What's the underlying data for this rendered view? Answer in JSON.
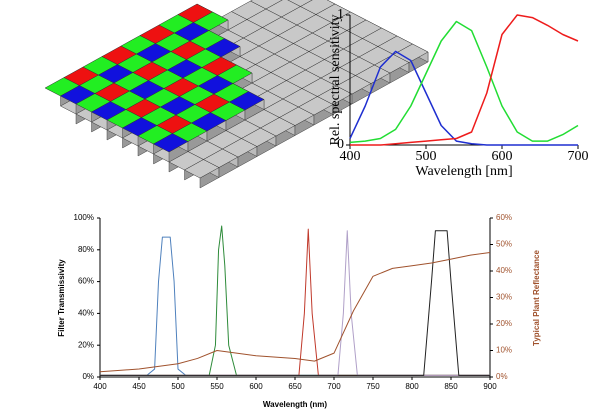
{
  "chart_data": [
    {
      "type": "line",
      "xlabel": "Wavelength [nm]",
      "ylabel": "Rel. spectral sensitivity",
      "x": [
        400,
        420,
        440,
        460,
        480,
        500,
        520,
        540,
        560,
        580,
        600,
        620,
        640,
        660,
        680,
        700
      ],
      "xlim": [
        400,
        700
      ],
      "xticks": [
        400,
        500,
        600,
        700
      ],
      "ylim": [
        0,
        1
      ],
      "yticks": [
        0,
        1
      ],
      "series": [
        {
          "color": "#1f2fd0",
          "values": [
            0.05,
            0.3,
            0.6,
            0.72,
            0.65,
            0.4,
            0.15,
            0.03,
            0.01,
            0,
            0,
            0,
            0,
            0,
            0,
            0
          ]
        },
        {
          "color": "#22dd33",
          "values": [
            0.02,
            0.03,
            0.05,
            0.12,
            0.3,
            0.55,
            0.8,
            0.95,
            0.88,
            0.6,
            0.3,
            0.1,
            0.03,
            0.03,
            0.08,
            0.15
          ]
        },
        {
          "color": "#ee1c1c",
          "values": [
            0,
            0,
            0,
            0.01,
            0.02,
            0.03,
            0.04,
            0.05,
            0.1,
            0.4,
            0.85,
            1.0,
            0.98,
            0.92,
            0.85,
            0.8
          ]
        }
      ]
    },
    {
      "type": "line",
      "xlabel": "Wavelength (nm)",
      "ylabel": "Filter Transmissivity",
      "y2label": "Typical Plant Reflectance",
      "xlim": [
        400,
        900
      ],
      "xticks": [
        400,
        450,
        500,
        550,
        600,
        650,
        700,
        750,
        800,
        850,
        900
      ],
      "ylim": [
        0,
        100
      ],
      "yticks": [
        {
          "value": 0,
          "label": "0%"
        },
        {
          "value": 20,
          "label": "20%"
        },
        {
          "value": 40,
          "label": "40%"
        },
        {
          "value": 60,
          "label": "60%"
        },
        {
          "value": 80,
          "label": "80%"
        },
        {
          "value": 100,
          "label": "100%"
        }
      ],
      "y2lim": [
        0,
        60
      ],
      "y2ticks": [
        {
          "value": 0,
          "label": "0%"
        },
        {
          "value": 10,
          "label": "10%"
        },
        {
          "value": 20,
          "label": "20%"
        },
        {
          "value": 30,
          "label": "30%"
        },
        {
          "value": 40,
          "label": "40%"
        },
        {
          "value": 50,
          "label": "50%"
        },
        {
          "value": 60,
          "label": "60%"
        }
      ],
      "series": [
        {
          "color": "#4f81bd",
          "x": [
            400,
            460,
            470,
            475,
            480,
            490,
            495,
            500,
            510,
            900
          ],
          "values": [
            1,
            1,
            5,
            60,
            88,
            88,
            60,
            5,
            1,
            1
          ]
        },
        {
          "color": "#2e8b3a",
          "x": [
            400,
            540,
            548,
            552,
            556,
            560,
            565,
            575,
            900
          ],
          "values": [
            1,
            1,
            20,
            80,
            95,
            70,
            20,
            1,
            1
          ]
        },
        {
          "color": "#c0392b",
          "x": [
            400,
            655,
            662,
            667,
            672,
            680,
            900
          ],
          "values": [
            1,
            1,
            40,
            93,
            40,
            1,
            1
          ]
        },
        {
          "color": "#b0a0c8",
          "x": [
            400,
            705,
            712,
            717,
            722,
            730,
            900
          ],
          "values": [
            1,
            1,
            40,
            92,
            40,
            1,
            1
          ]
        },
        {
          "color": "#222222",
          "x": [
            400,
            815,
            825,
            830,
            845,
            850,
            860,
            900
          ],
          "values": [
            1,
            1,
            60,
            92,
            92,
            60,
            1,
            1
          ]
        },
        {
          "color": "#a0522d",
          "axis": "y2",
          "x": [
            400,
            425,
            450,
            475,
            500,
            525,
            550,
            575,
            600,
            625,
            650,
            675,
            700,
            725,
            750,
            775,
            800,
            825,
            850,
            875,
            900
          ],
          "values": [
            2,
            2.5,
            3,
            4,
            5,
            7,
            10,
            9,
            8,
            7.5,
            7,
            6,
            9,
            25,
            38,
            41,
            42,
            43,
            44.5,
            46,
            47
          ]
        }
      ]
    }
  ]
}
